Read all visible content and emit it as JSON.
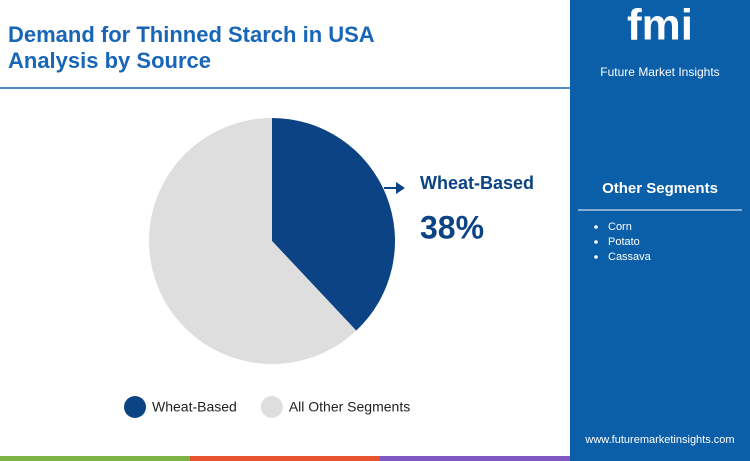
{
  "chart_data": {
    "type": "pie",
    "title": "Demand for Thinned Starch in USA",
    "subtitle": "Analysis by Source",
    "categories": [
      "Wheat-Based",
      "All Other Segments"
    ],
    "values": [
      38,
      62
    ],
    "value_labels": [
      "38%",
      null
    ],
    "colors": [
      "#0b4384",
      "#dedede"
    ]
  },
  "brand": {
    "logo": "fmi",
    "name": "Future Market Insights",
    "url": "www.futuremarketinsights.com"
  },
  "sidebar": {
    "heading": "Other Segments",
    "items": [
      "Corn",
      "Potato",
      "Cassava"
    ]
  }
}
